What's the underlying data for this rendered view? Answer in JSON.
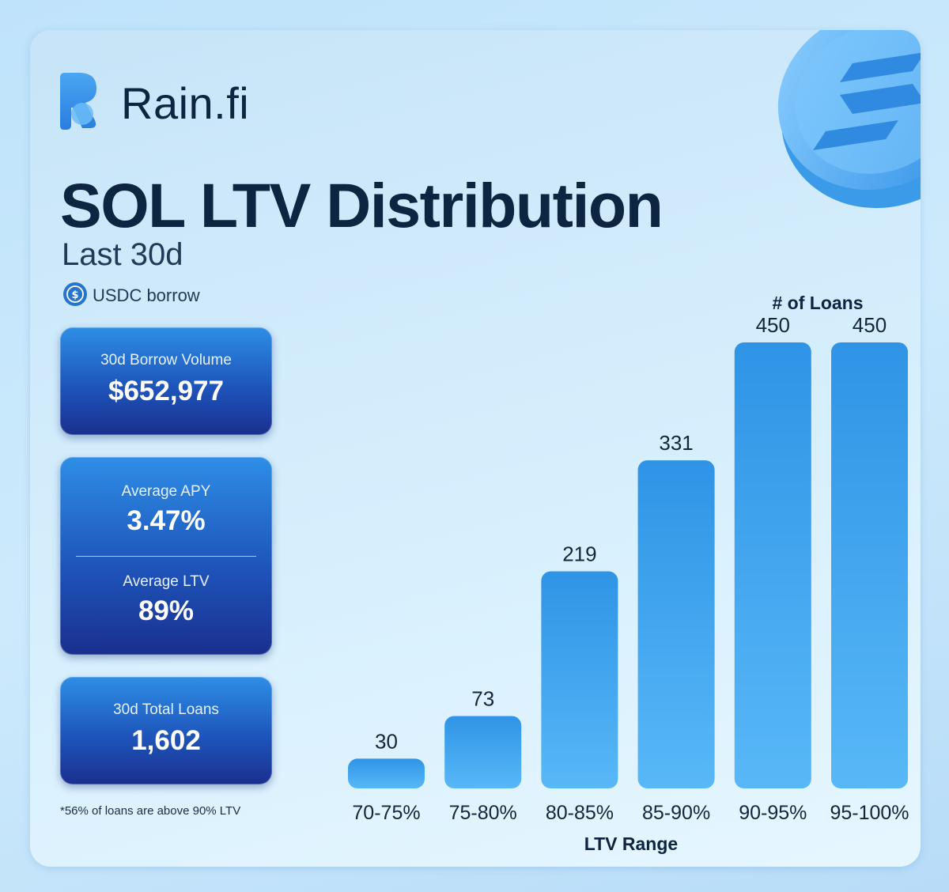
{
  "brand": {
    "name": "Rain.fi"
  },
  "header": {
    "title": "SOL LTV Distribution",
    "subtitle": "Last 30d",
    "currency_label": "USDC borrow"
  },
  "stats": {
    "borrow_volume": {
      "label": "30d Borrow Volume",
      "value": "$652,977"
    },
    "average_apy": {
      "label": "Average APY",
      "value": "3.47%"
    },
    "average_ltv": {
      "label": "Average LTV",
      "value": "89%"
    },
    "total_loans": {
      "label": "30d Total Loans",
      "value": "1,602"
    }
  },
  "footnote": "*56% of loans are above 90% LTV",
  "colors": {
    "bar_top": "#2f94e6",
    "bar_bottom": "#58b8f7",
    "title_text": "#0d2540",
    "stat_card": "#1e55bb"
  },
  "chart_data": {
    "type": "bar",
    "categories": [
      "70-75%",
      "75-80%",
      "80-85%",
      "85-90%",
      "90-95%",
      "95-100%"
    ],
    "values": [
      30,
      73,
      219,
      331,
      450,
      450
    ],
    "data_labels": [
      "30",
      "73",
      "219",
      "331",
      "450",
      "450"
    ],
    "title": "# of Loans",
    "xlabel": "LTV Range",
    "ylabel": "# of Loans",
    "ylim": [
      0,
      450
    ],
    "grid": false,
    "legend": "none"
  }
}
